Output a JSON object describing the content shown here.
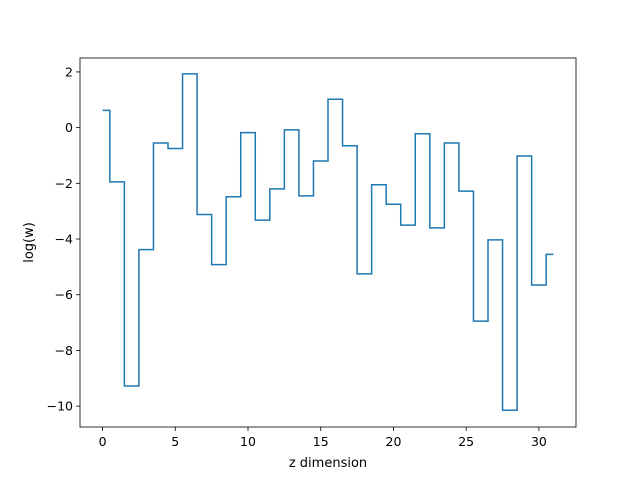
{
  "chart_data": {
    "type": "line",
    "drawstyle": "steps-mid",
    "title": "",
    "xlabel": "z dimension",
    "ylabel": "log(w)",
    "xlim": [
      -1.55,
      32.55
    ],
    "ylim": [
      -10.75,
      2.5
    ],
    "xticks": [
      0,
      5,
      10,
      15,
      20,
      25,
      30
    ],
    "yticks": [
      2,
      0,
      -2,
      -4,
      -6,
      -8,
      -10
    ],
    "xtick_labels": [
      "0",
      "5",
      "10",
      "15",
      "20",
      "25",
      "30"
    ],
    "ytick_labels": [
      "2",
      "0",
      "−2",
      "−4",
      "−6",
      "−8",
      "−10"
    ],
    "grid": false,
    "series": [
      {
        "color": "#1f77b4",
        "x": [
          0,
          1,
          2,
          3,
          4,
          5,
          6,
          7,
          8,
          9,
          10,
          11,
          12,
          13,
          14,
          15,
          16,
          17,
          18,
          19,
          20,
          21,
          22,
          23,
          24,
          25,
          26,
          27,
          28,
          29,
          30,
          31
        ],
        "values": [
          0.62,
          -1.95,
          -9.28,
          -4.38,
          -0.55,
          -0.75,
          1.93,
          -3.12,
          -4.92,
          -2.48,
          -0.18,
          -3.32,
          -2.2,
          -0.08,
          -2.45,
          -1.2,
          1.02,
          -0.65,
          -5.25,
          -2.05,
          -2.75,
          -3.5,
          -0.22,
          -3.6,
          -0.55,
          -2.28,
          -6.95,
          -4.03,
          -10.15,
          -1.02,
          -5.65,
          -4.55
        ]
      }
    ]
  }
}
